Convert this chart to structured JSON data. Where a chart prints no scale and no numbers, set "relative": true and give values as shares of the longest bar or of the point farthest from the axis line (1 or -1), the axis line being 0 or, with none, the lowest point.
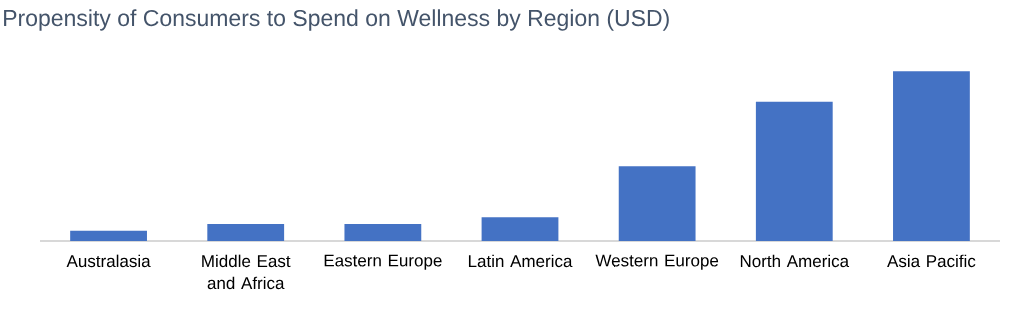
{
  "chart_data": {
    "type": "bar",
    "title": "Propensity of Consumers to Spend on Wellness by Region (USD)",
    "categories": [
      "Australasia",
      "Middle East and Africa",
      "Eastern Europe",
      "Latin America",
      "Western Europe",
      "North America",
      "Asia Pacific"
    ],
    "values": [
      0.06,
      0.1,
      0.1,
      0.14,
      0.44,
      0.82,
      1
    ],
    "color": "#4472c4",
    "relative": true
  }
}
